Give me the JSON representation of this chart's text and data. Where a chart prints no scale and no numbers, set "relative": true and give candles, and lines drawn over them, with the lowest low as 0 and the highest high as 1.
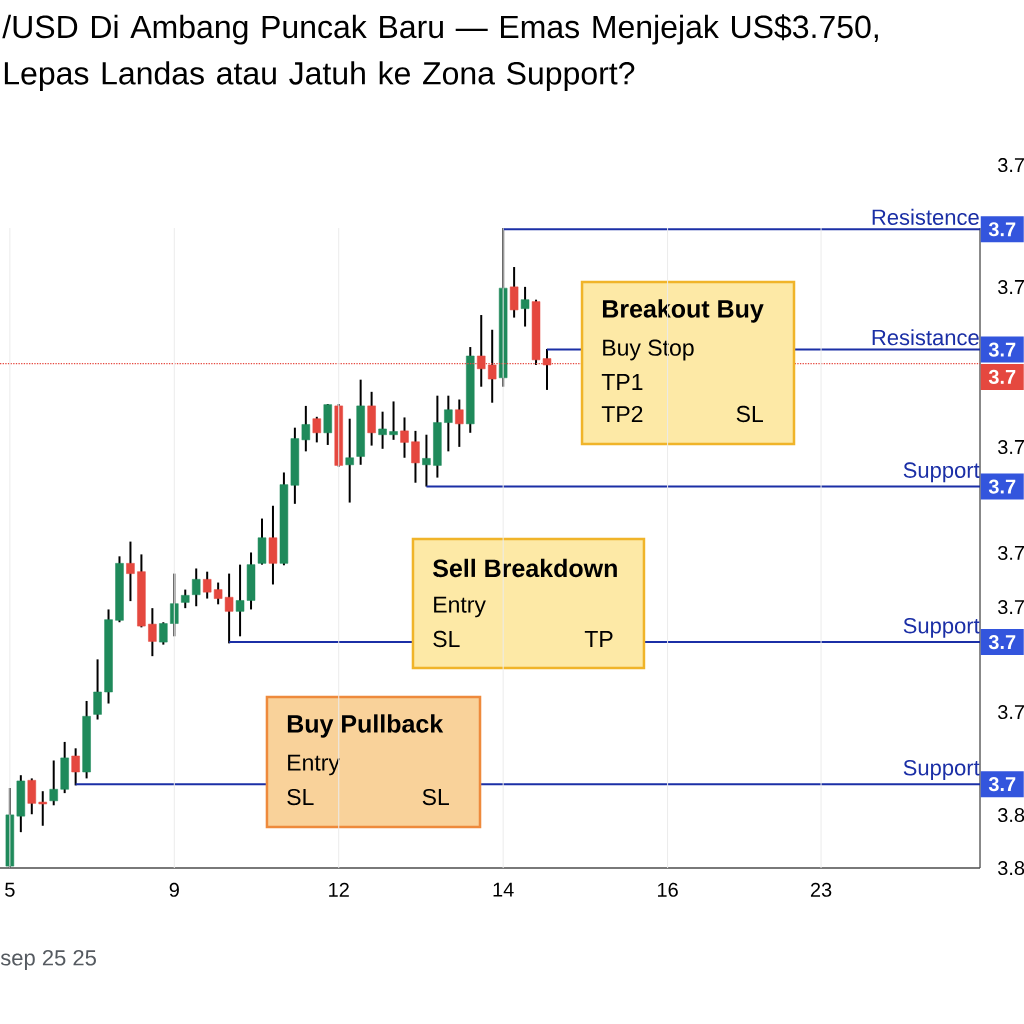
{
  "chart_data": {
    "type": "candlestick",
    "relative": true,
    "title": "/USD Di Ambang Puncak Baru — Emas Menjejak US$3.750, Lepas Landas atau Jatuh ke Zona Support?",
    "categories": [
      "5",
      null,
      null,
      null,
      null,
      null,
      null,
      null,
      null,
      null,
      null,
      null,
      null,
      null,
      null,
      "9",
      null,
      null,
      null,
      null,
      null,
      null,
      null,
      null,
      null,
      null,
      null,
      null,
      null,
      null,
      "12",
      null,
      null,
      null,
      null,
      null,
      null,
      null,
      null,
      null,
      null,
      null,
      null,
      null,
      null,
      "14",
      null,
      null,
      null,
      null,
      null,
      null,
      null,
      null,
      null,
      null,
      null,
      null,
      null,
      null,
      "16",
      null,
      null,
      null,
      null,
      null,
      null,
      null,
      null,
      null,
      null,
      null,
      null,
      null,
      "23",
      null,
      null,
      null,
      null,
      null,
      null,
      null,
      null,
      null,
      null,
      null,
      null,
      null,
      null
    ],
    "grid": "x",
    "ohlc": [
      [
        0.003,
        0.125,
        0,
        0.083
      ],
      [
        0.081,
        0.145,
        0.056,
        0.136
      ],
      [
        0.137,
        0.14,
        0.084,
        0.101
      ],
      [
        0.103,
        0.12,
        0.066,
        0.1
      ],
      [
        0.105,
        0.168,
        0.098,
        0.123
      ],
      [
        0.123,
        0.197,
        0.117,
        0.172
      ],
      [
        0.175,
        0.187,
        0.129,
        0.15
      ],
      [
        0.15,
        0.261,
        0.14,
        0.237
      ],
      [
        0.24,
        0.326,
        0.232,
        0.275
      ],
      [
        0.275,
        0.404,
        0.257,
        0.388
      ],
      [
        0.387,
        0.487,
        0.384,
        0.476
      ],
      [
        0.476,
        0.51,
        0.417,
        0.46
      ],
      [
        0.463,
        0.49,
        0.376,
        0.378
      ],
      [
        0.381,
        0.406,
        0.331,
        0.354
      ],
      [
        0.353,
        0.384,
        0.349,
        0.382
      ],
      [
        0.382,
        0.46,
        0.362,
        0.413
      ],
      [
        0.415,
        0.435,
        0.406,
        0.426
      ],
      [
        0.427,
        0.468,
        0.409,
        0.451
      ],
      [
        0.451,
        0.463,
        0.421,
        0.431
      ],
      [
        0.435,
        0.446,
        0.412,
        0.421
      ],
      [
        0.423,
        0.46,
        0.351,
        0.401
      ],
      [
        0.401,
        0.474,
        0.362,
        0.418
      ],
      [
        0.418,
        0.493,
        0.404,
        0.474
      ],
      [
        0.476,
        0.546,
        0.474,
        0.516
      ],
      [
        0.516,
        0.566,
        0.443,
        0.476
      ],
      [
        0.476,
        0.618,
        0.473,
        0.599
      ],
      [
        0.598,
        0.688,
        0.569,
        0.671
      ],
      [
        0.669,
        0.722,
        0.651,
        0.693
      ],
      [
        0.702,
        0.705,
        0.665,
        0.68
      ],
      [
        0.68,
        0.725,
        0.661,
        0.724
      ],
      [
        0.722,
        0.725,
        0.627,
        0.629
      ],
      [
        0.63,
        0.702,
        0.571,
        0.641
      ],
      [
        0.643,
        0.763,
        0.63,
        0.722
      ],
      [
        0.722,
        0.744,
        0.66,
        0.68
      ],
      [
        0.677,
        0.713,
        0.655,
        0.686
      ],
      [
        0.677,
        0.729,
        0.669,
        0.682
      ],
      [
        0.683,
        0.704,
        0.641,
        0.665
      ],
      [
        0.666,
        0.683,
        0.602,
        0.633
      ],
      [
        0.63,
        0.677,
        0.596,
        0.64
      ],
      [
        0.629,
        0.738,
        0.61,
        0.696
      ],
      [
        0.696,
        0.738,
        0.651,
        0.716
      ],
      [
        0.716,
        0.732,
        0.658,
        0.694
      ],
      [
        0.694,
        0.814,
        0.68,
        0.8
      ],
      [
        0.8,
        0.864,
        0.752,
        0.78
      ],
      [
        0.786,
        0.841,
        0.727,
        0.764
      ],
      [
        0.766,
        1,
        0.752,
        0.906
      ],
      [
        0.908,
        0.939,
        0.86,
        0.872
      ],
      [
        0.874,
        0.908,
        0.846,
        0.888
      ],
      [
        0.885,
        0.888,
        0.786,
        0.794
      ],
      [
        0.796,
        0.811,
        0.747,
        0.786
      ],
      null,
      null,
      null,
      null,
      null,
      null,
      null,
      null,
      null,
      null,
      null,
      null,
      null,
      null,
      null,
      null,
      null,
      null,
      null,
      null,
      null,
      null,
      null,
      null,
      null,
      null,
      null,
      null,
      null,
      null,
      null,
      null,
      null,
      null,
      null,
      null,
      null,
      null,
      null
    ],
    "colors": [
      "#1f8a5b",
      "#1f8a5b",
      "#e5483f",
      "#e5483f",
      "#1f8a5b",
      "#1f8a5b",
      "#e5483f",
      "#1f8a5b",
      "#1f8a5b",
      "#1f8a5b",
      "#1f8a5b",
      "#e5483f",
      "#e5483f",
      "#e5483f",
      "#1f8a5b",
      "#1f8a5b",
      "#1f8a5b",
      "#1f8a5b",
      "#e5483f",
      "#e5483f",
      "#e5483f",
      "#1f8a5b",
      "#1f8a5b",
      "#1f8a5b",
      "#e5483f",
      "#1f8a5b",
      "#1f8a5b",
      "#1f8a5b",
      "#e5483f",
      "#1f8a5b",
      "#e5483f",
      "#1f8a5b",
      "#1f8a5b",
      "#e5483f",
      "#1f8a5b",
      "#1f8a5b",
      "#e5483f",
      "#e5483f",
      "#1f8a5b",
      "#1f8a5b",
      "#1f8a5b",
      "#e5483f",
      "#1f8a5b",
      "#e5483f",
      "#e5483f",
      "#1f8a5b",
      "#e5483f",
      "#1f8a5b",
      "#e5483f",
      "#e5483f",
      null,
      null,
      null,
      null,
      null,
      null,
      null,
      null,
      null,
      null,
      null,
      null,
      null,
      null,
      null,
      null,
      null,
      null,
      null,
      null,
      null,
      null,
      null,
      null,
      null,
      null,
      null,
      null,
      null,
      null,
      null,
      null,
      null,
      null,
      null,
      null,
      null,
      null,
      null
    ],
    "ref_lines": [
      {
        "axis": "y",
        "value": 0.998,
        "label": "Resistence",
        "color": "#1b2fa6"
      },
      {
        "axis": "y",
        "value": 0.81,
        "label": "Resistance",
        "color": "#1b2fa6"
      },
      {
        "axis": "y",
        "value": 0.788,
        "color": "#e5483f",
        "line_style": "dotted"
      },
      {
        "axis": "y",
        "value": 0.596,
        "label": "Support",
        "color": "#1b2fa6"
      },
      {
        "axis": "y",
        "value": 0.353,
        "label": "Support",
        "color": "#1b2fa6"
      },
      {
        "axis": "y",
        "value": 0.131,
        "label": "Support",
        "color": "#1b2fa6"
      }
    ],
    "annotations": [
      "Breakout Buy",
      "Buy Stop",
      "TP1",
      "TP2",
      "SL",
      "Sell Breakdown",
      "Entry",
      "SL",
      "TP",
      "Buy Pullback",
      "Entry",
      "SL",
      "SL",
      "sep 25 25",
      "3.7",
      "3.7",
      "3.7",
      "3.7",
      "3.7",
      "3.7",
      "3.8",
      "3.8",
      "3.7",
      "3.7",
      "3.7",
      "3.7",
      "3.7",
      "3.7"
    ]
  }
}
